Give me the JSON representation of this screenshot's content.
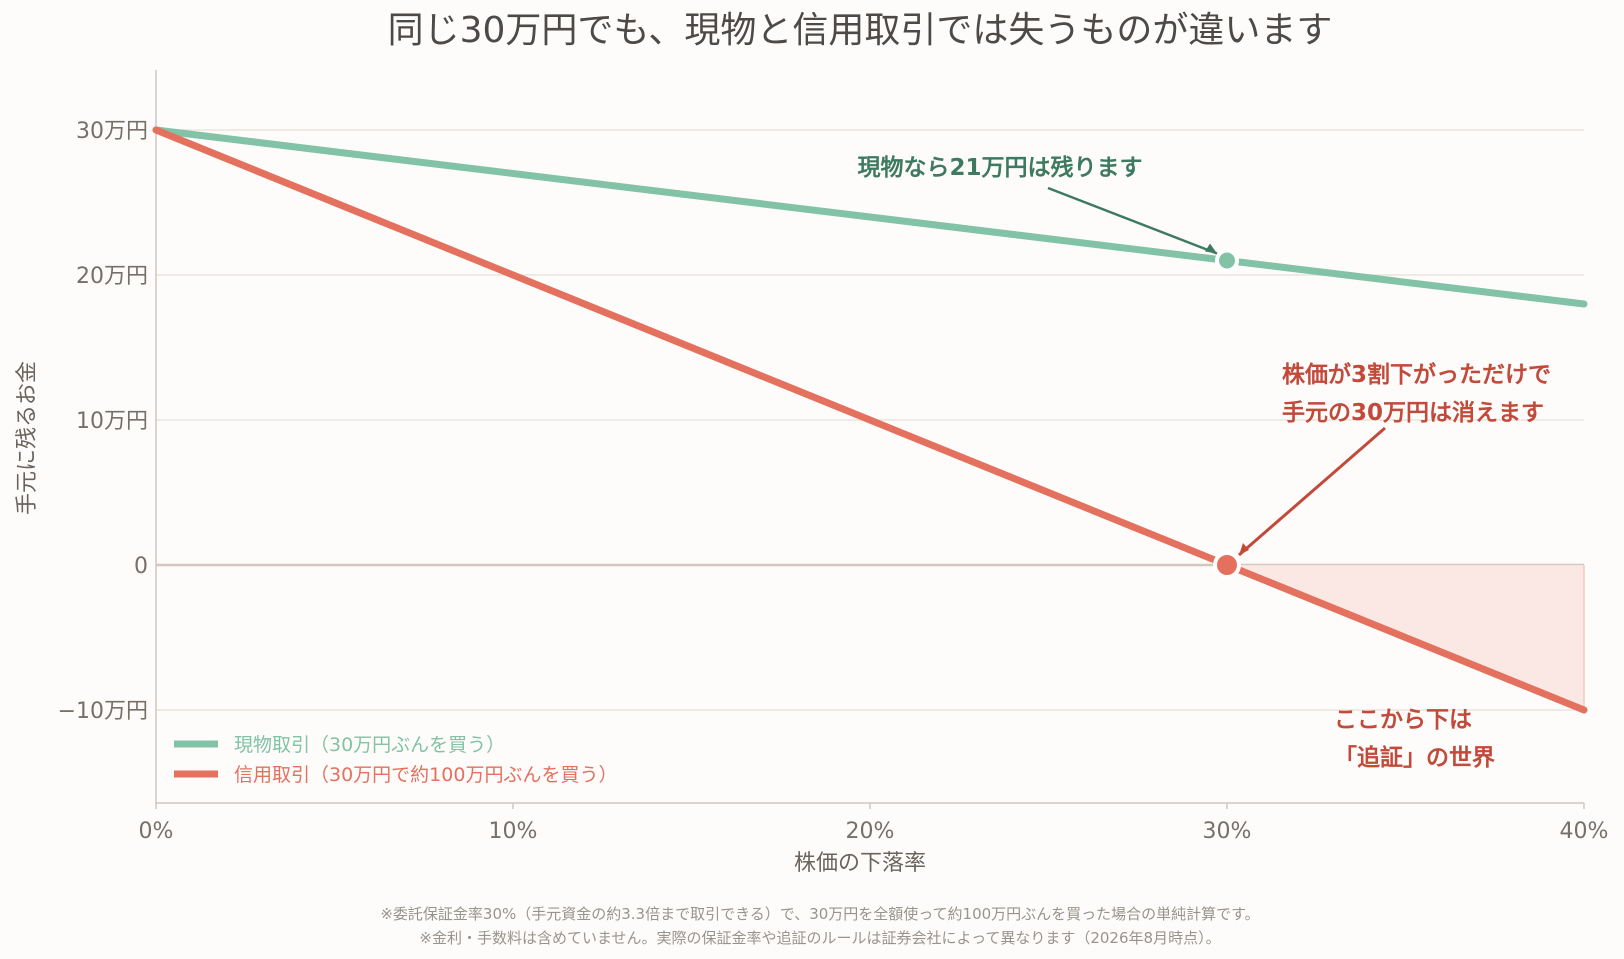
{
  "chart_data": {
    "type": "line",
    "title": "同じ30万円でも、現物と信用取引では失うものが違います",
    "xlabel": "株価の下落率",
    "ylabel": "手元に残るお金",
    "xlim": [
      0,
      40
    ],
    "ylim": [
      -16,
      34
    ],
    "x_ticks": [
      "0%",
      "10%",
      "20%",
      "30%",
      "40%"
    ],
    "y_ticks": [
      "30万円",
      "20万円",
      "10万円",
      "0",
      "−10万円"
    ],
    "grid": "horizontal",
    "legend_position": "bottom-left",
    "x": [
      0,
      10,
      20,
      30,
      40
    ],
    "series": [
      {
        "name": "現物取引（30万円ぶんを買う）",
        "color": "#82c2a6",
        "values": [
          30,
          27,
          24,
          21,
          18
        ]
      },
      {
        "name": "信用取引（30万円で約100万円ぶんを買う）",
        "color": "#e4705e",
        "values": [
          30,
          20,
          10,
          0,
          -10
        ]
      }
    ],
    "markers": [
      {
        "series": 0,
        "x": 30,
        "y": 21
      },
      {
        "series": 1,
        "x": 30,
        "y": 0
      }
    ],
    "annotations": {
      "spot": {
        "lines": [
          "現物なら21万円は残ります"
        ],
        "color": "#3e7a62"
      },
      "margin": {
        "lines": [
          "株価が3割下がっただけで",
          "手元の30万円は消えます"
        ],
        "color": "#c24a3a"
      },
      "zone": {
        "lines": [
          "ここから下は",
          "「追証」の世界"
        ],
        "color": "#c24a3a"
      }
    },
    "shade": {
      "color": "#fbe4e0"
    }
  },
  "footnotes": [
    "※委託保証金率30%（手元資金の約3.3倍まで取引できる）で、30万円を全額使って約100万円ぶんを買った場合の単純計算です。",
    "※金利・手数料は含めていません。実際の保証金率や追証のルールは証券会社によって異なります（2026年8月時点）。"
  ]
}
